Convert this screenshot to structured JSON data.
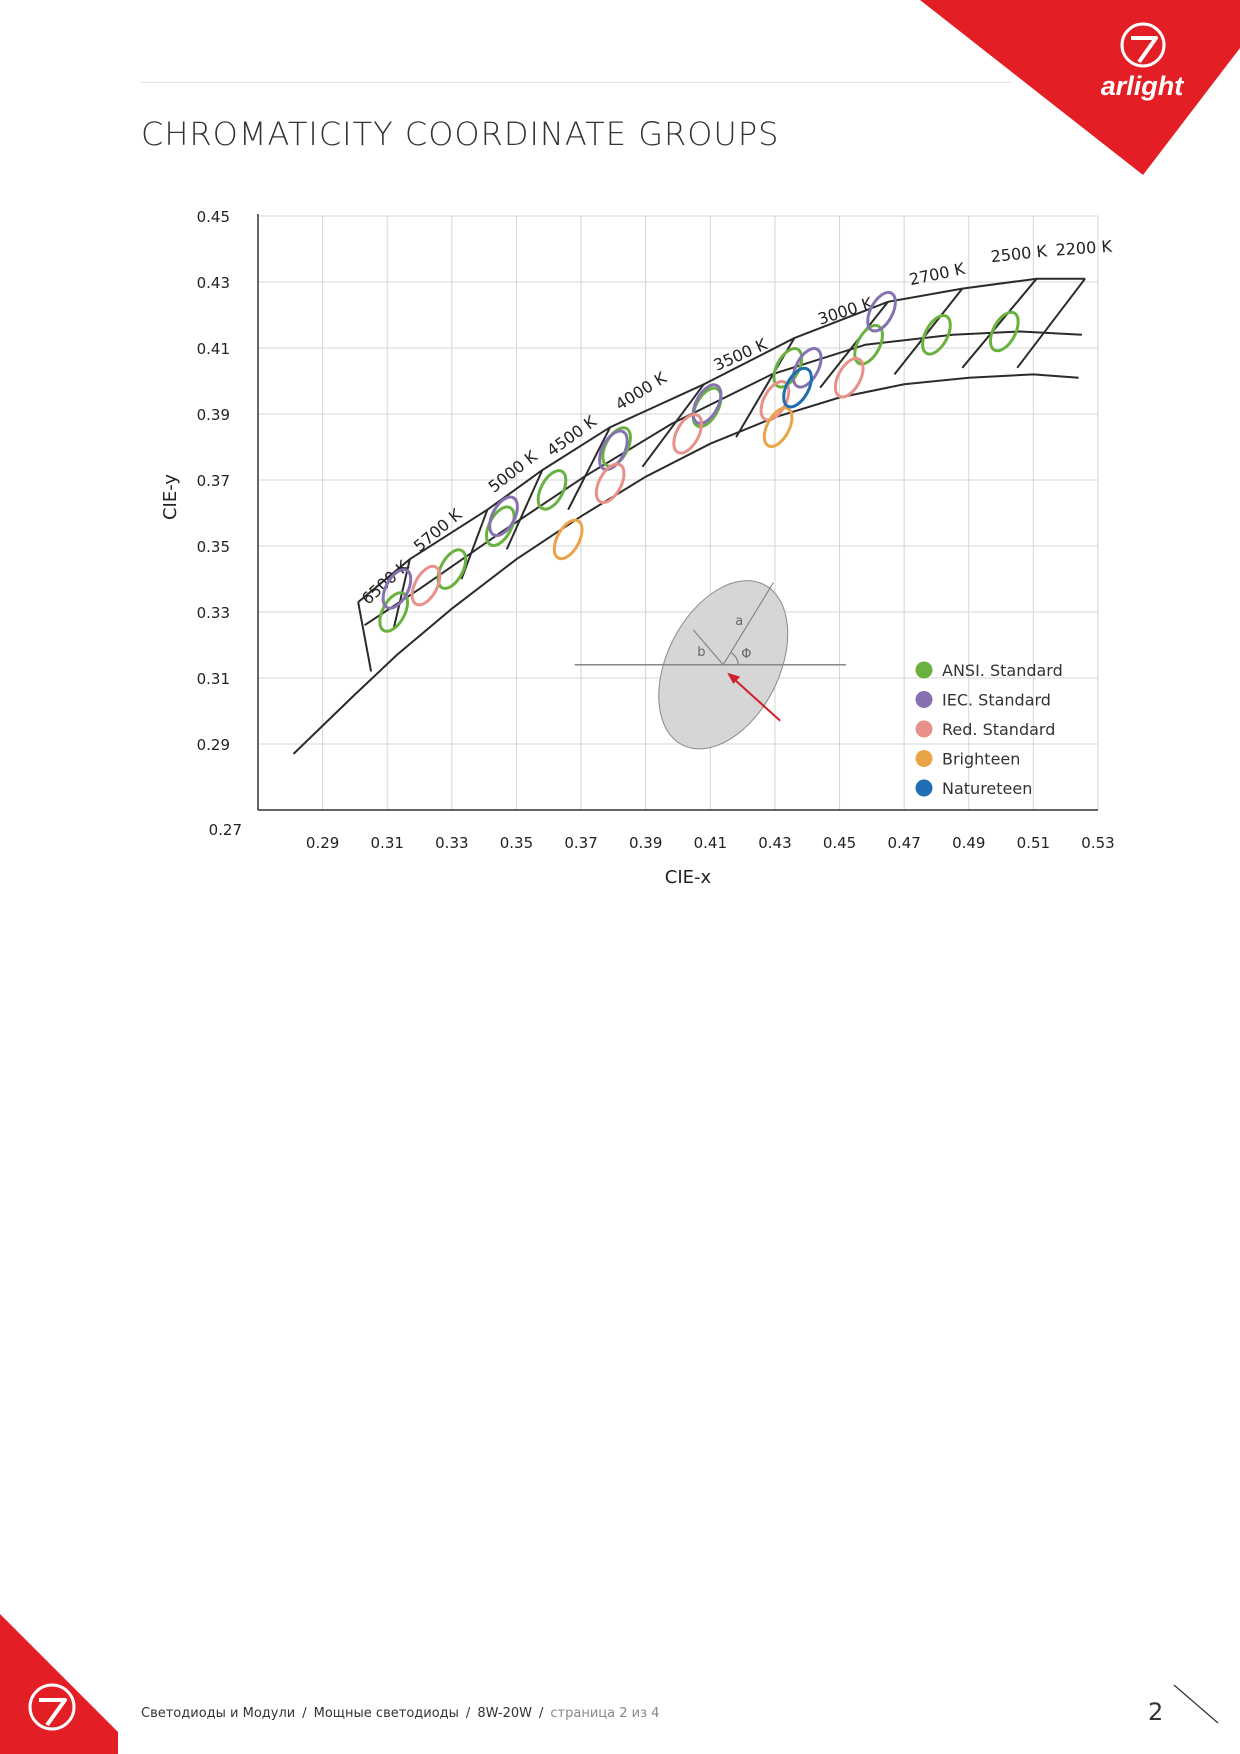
{
  "header": {
    "title": "CHROMATICITY COORDINATE GROUPS",
    "logo_text": "arlight"
  },
  "footer": {
    "crumbs": [
      "Светодиоды и Модули",
      "Мощные светодиоды",
      "8W-20W"
    ],
    "page_info": "страница 2 из 4",
    "page_number": "2"
  },
  "colors": {
    "brand_red": "#e31e24",
    "ansi": "#6ab23f",
    "iec": "#8672b0",
    "red_std": "#e8908a",
    "brighteen": "#eaa448",
    "natureteen": "#1f6db3"
  },
  "chart_data": {
    "type": "scatter",
    "xlabel": "CIE-x",
    "ylabel": "CIE-y",
    "x_ticks": [
      "0.29",
      "0.31",
      "0.33",
      "0.35",
      "0.37",
      "0.39",
      "0.41",
      "0.43",
      "0.45",
      "0.47",
      "0.49",
      "0.51",
      "0.53"
    ],
    "y_ticks": [
      "0.45",
      "0.43",
      "0.41",
      "0.39",
      "0.37",
      "0.35",
      "0.33",
      "0.31",
      "0.29",
      "0.27"
    ],
    "xlim": [
      0.27,
      0.53
    ],
    "ylim": [
      0.27,
      0.45
    ],
    "grid": true,
    "legend_position": "bottom-right",
    "cct_labels": [
      "6500 K",
      "5700 K",
      "5000 K",
      "4500 K",
      "4000 K",
      "3500 K",
      "3000 K",
      "2700 K",
      "2500 K",
      "2200 K"
    ],
    "ellipse_diagram_labels": [
      "a",
      "b",
      "Φ"
    ],
    "series": [
      {
        "name": "ANSI. Standard",
        "color": "#6ab23f",
        "points": [
          [
            0.312,
            0.33
          ],
          [
            0.33,
            0.343
          ],
          [
            0.345,
            0.356
          ],
          [
            0.361,
            0.367
          ],
          [
            0.381,
            0.38
          ],
          [
            0.409,
            0.392
          ],
          [
            0.434,
            0.404
          ],
          [
            0.459,
            0.411
          ],
          [
            0.48,
            0.414
          ],
          [
            0.501,
            0.415
          ]
        ]
      },
      {
        "name": "IEC. Standard",
        "color": "#8672b0",
        "points": [
          [
            0.313,
            0.337
          ],
          [
            0.346,
            0.359
          ],
          [
            0.38,
            0.379
          ],
          [
            0.409,
            0.393
          ],
          [
            0.44,
            0.404
          ],
          [
            0.463,
            0.421
          ]
        ]
      },
      {
        "name": "Red. Standard",
        "color": "#e8908a",
        "points": [
          [
            0.322,
            0.338
          ],
          [
            0.379,
            0.369
          ],
          [
            0.403,
            0.384
          ],
          [
            0.43,
            0.394
          ],
          [
            0.453,
            0.401
          ]
        ]
      },
      {
        "name": "Brighteen",
        "color": "#eaa448",
        "points": [
          [
            0.366,
            0.352
          ],
          [
            0.431,
            0.386
          ]
        ]
      },
      {
        "name": "Natureteen",
        "color": "#1f6db3",
        "points": [
          [
            0.437,
            0.398
          ]
        ]
      }
    ]
  }
}
